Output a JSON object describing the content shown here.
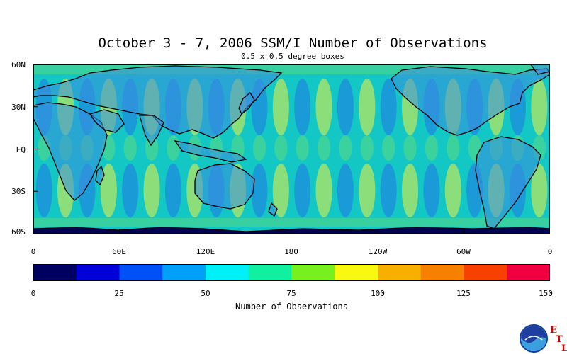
{
  "title": "October 3 - 7, 2006 SSM/I Number of Observations",
  "subtitle": "0.5 x 0.5 degree boxes",
  "map": {
    "lat_labels": [
      "60N",
      "30N",
      "EQ",
      "30S",
      "60S"
    ],
    "lon_labels": [
      "0",
      "60E",
      "120E",
      "180",
      "120W",
      "60W",
      "0"
    ],
    "ocean_color": "#13c8c4",
    "band_colors": {
      "low": "#1e88e0",
      "high": "#f0f040",
      "mid": "#64dc78"
    },
    "land_color": "#3070d0",
    "antarctic_color": "#000050"
  },
  "colorbar": {
    "title": "Number of Observations",
    "tick_labels": [
      "0",
      "25",
      "50",
      "75",
      "100",
      "125",
      "150"
    ],
    "colors": [
      "#000060",
      "#0000d8",
      "#0050f8",
      "#00a0f8",
      "#00f0f8",
      "#10f0a0",
      "#78f020",
      "#f8f810",
      "#f8b000",
      "#f88000",
      "#f84000",
      "#f00040"
    ]
  },
  "logo": {
    "name": "NOAA",
    "etl_letters": [
      "E",
      "T",
      "L"
    ]
  }
}
